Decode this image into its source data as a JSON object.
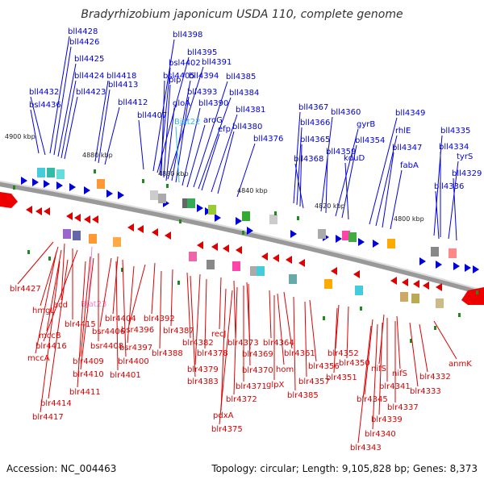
{
  "header": {
    "title": "Bradyrhizobium japonicum USDA 110, complete genome"
  },
  "footer": {
    "accession": "Accession: NC_004463",
    "summary": "Topology: circular; Length: 9,105,828 bp; Genes: 8,373"
  },
  "colors": {
    "forward": "#0000dd",
    "reverse": "#dd0000",
    "rna": "#33bbdd",
    "rna_rev": "#ee88cc",
    "backbone": "#999999"
  },
  "positions": [
    {
      "text": "4900 kbp"
    },
    {
      "text": "4880 kbp"
    },
    {
      "text": "4860 kbp"
    },
    {
      "text": "4840 kbp"
    },
    {
      "text": "4820 kbp"
    },
    {
      "text": "4800 kbp"
    }
  ],
  "forward_genes": [
    "bll4428",
    "bll4426",
    "bll4425",
    "bll4424",
    "bll4432",
    "bll4423",
    "bsl4436",
    "bll4418",
    "bll4413",
    "bll4412",
    "bll4407",
    "bll4398",
    "bll4395",
    "bsl4402",
    "bll4391",
    "pip",
    "bsl4405",
    "bll4394",
    "bll4393",
    "bll4385",
    "gloA",
    "bll4384",
    "bll4390",
    "aroG",
    "bll4381",
    "Bjat22",
    "efp",
    "bll4380",
    "bll4376",
    "bll4367",
    "bll4366",
    "bll4365",
    "bll4368",
    "bll4360",
    "bll4359",
    "gyrB",
    "bll4354",
    "kduD",
    "bll4349",
    "rhlE",
    "bll4347",
    "fabA",
    "bll4335",
    "bll4334",
    "tyrS",
    "bll4329",
    "bll4336"
  ],
  "reverse_genes": [
    "blr4427",
    "acd",
    "hmgL",
    "Bjat23",
    "blr4415",
    "mccB",
    "blr4416",
    "mccA",
    "bsr4408",
    "blr4409",
    "blr4410",
    "blr4411",
    "blr4414",
    "blr4417",
    "blr4404",
    "bsr4406",
    "blr4400",
    "blr4401",
    "blr4392",
    "bsr4396",
    "bsr4397",
    "blr4387",
    "blr4388",
    "blr4382",
    "blr4379",
    "blr4383",
    "recJ",
    "blr4378",
    "blr4373",
    "blr4369",
    "blr4370",
    "blr4371",
    "blr4372",
    "pdxA",
    "blr4375",
    "blr4364",
    "blr4361",
    "hom",
    "glpX",
    "blr4385",
    "blr4356",
    "blr4357",
    "blr4352",
    "blr4350",
    "blr4351",
    "nifS",
    "nifS",
    "blr4341",
    "blr4345",
    "blr4337",
    "blr4339",
    "blr4340",
    "blr4343",
    "blr4333",
    "blr4332",
    "anmK"
  ]
}
